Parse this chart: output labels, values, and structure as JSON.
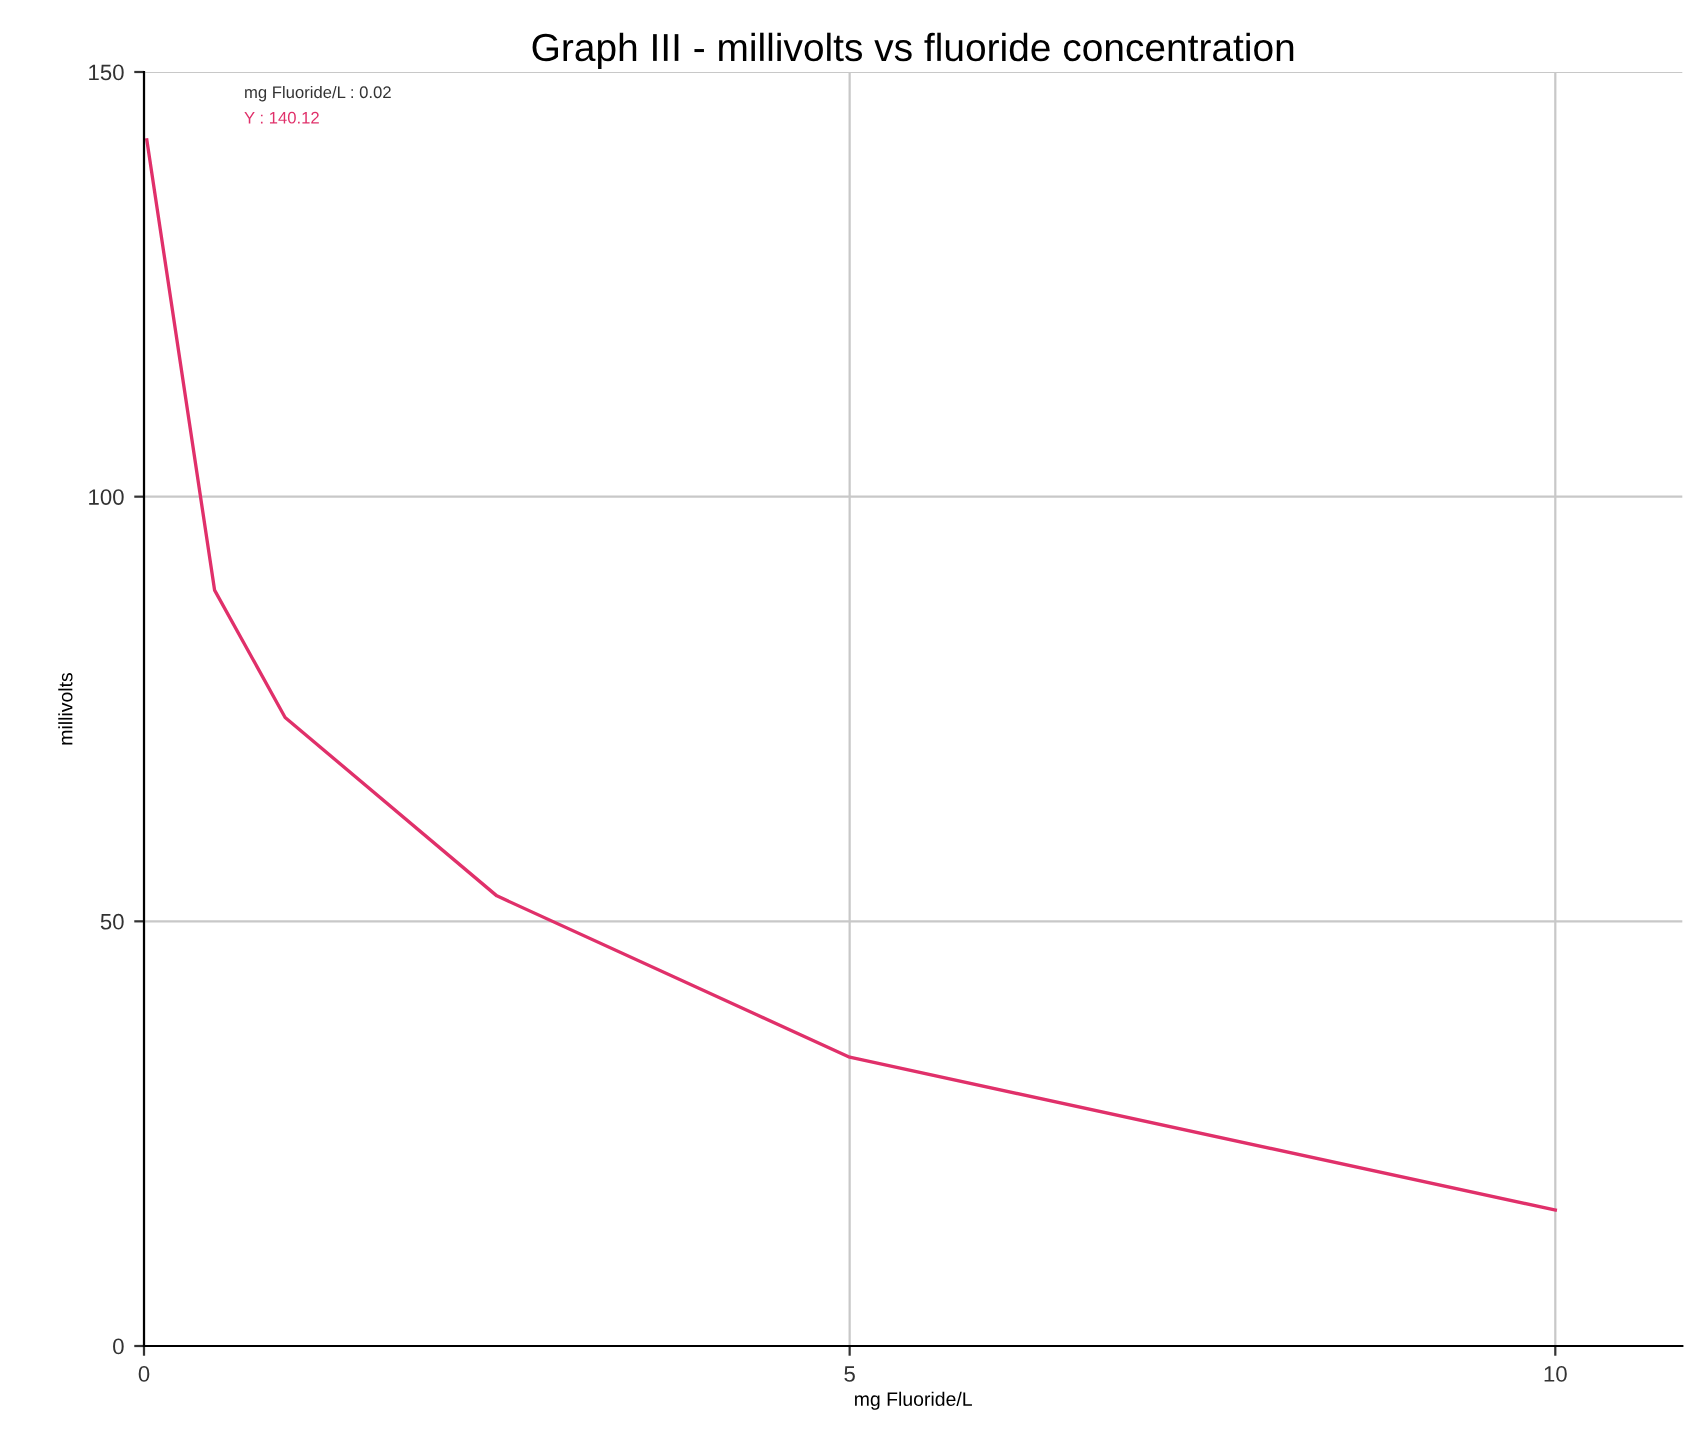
{
  "chart_data": {
    "type": "line",
    "title": "Graph III - millivolts vs fluoride concentration",
    "xlabel": "mg Fluoride/L",
    "ylabel": "millivolts",
    "series": [
      {
        "color": "#e0306a",
        "x": [
          0.02,
          0.5,
          1,
          2.5,
          5,
          10
        ],
        "values": [
          142,
          89,
          74,
          53,
          34,
          16
        ]
      }
    ],
    "annotations": [
      "mg Fluoride/L : 0.02",
      "Y : 140.12"
    ],
    "xlim": [
      0,
      10.9
    ],
    "xticks": [
      0,
      5,
      10
    ],
    "ylim": [
      0,
      150
    ],
    "yticks": [
      0,
      50,
      100,
      150
    ],
    "grid": true,
    "marker": "none",
    "line_style": "solid"
  }
}
